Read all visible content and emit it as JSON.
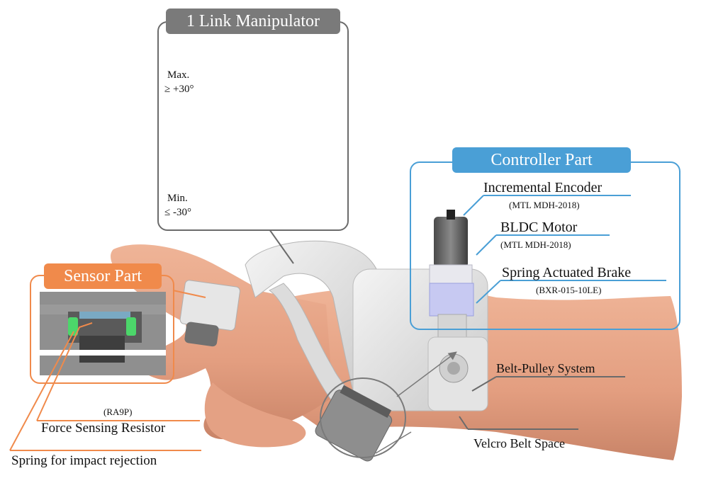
{
  "callouts": {
    "manipulator_title": "1 Link Manipulator",
    "controller_title": "Controller Part",
    "sensor_title": "Sensor Part"
  },
  "angles": {
    "max_label": "Max.",
    "max_value": "≥ +30°",
    "min_label": "Min.",
    "min_value": "≤ -30°"
  },
  "components": {
    "encoder_name": "Incremental Encoder",
    "encoder_model": "(MTL MDH-2018)",
    "motor_name": "BLDC Motor",
    "motor_model": "(MTL MDH-2018)",
    "brake_name": "Spring Actuated Brake",
    "brake_model": "(BXR-015-10LE)",
    "belt_pulley": "Belt-Pulley System",
    "velcro": "Velcro Belt Space",
    "fsr_model": "(RA9P)",
    "fsr_name": "Force Sensing Resistor",
    "spring": "Spring for impact rejection"
  },
  "colors": {
    "controller_accent": "#4a9fd6",
    "sensor_accent": "#f08a4b",
    "manipulator_accent": "#7a7a7a",
    "skin": "#e9a587"
  }
}
